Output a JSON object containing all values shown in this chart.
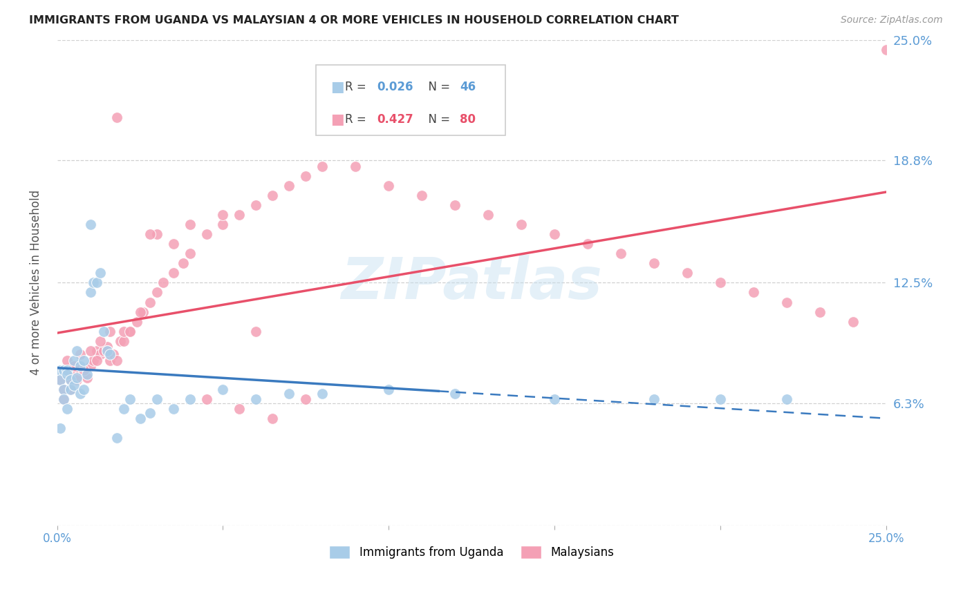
{
  "title": "IMMIGRANTS FROM UGANDA VS MALAYSIAN 4 OR MORE VEHICLES IN HOUSEHOLD CORRELATION CHART",
  "source": "Source: ZipAtlas.com",
  "ylabel": "4 or more Vehicles in Household",
  "xlim": [
    0.0,
    0.25
  ],
  "ylim": [
    0.0,
    0.25
  ],
  "watermark": "ZIPatlas",
  "uganda": {
    "name": "Immigrants from Uganda",
    "R": 0.026,
    "N": 46,
    "dot_color": "#a8cce8",
    "trend_color": "#3a7abf",
    "trend_start_solid": 0.0,
    "trend_end_solid": 0.115,
    "trend_start_dash": 0.115,
    "trend_end_dash": 0.25,
    "x": [
      0.001,
      0.001,
      0.001,
      0.002,
      0.002,
      0.002,
      0.003,
      0.003,
      0.003,
      0.004,
      0.004,
      0.005,
      0.005,
      0.006,
      0.006,
      0.007,
      0.007,
      0.008,
      0.008,
      0.009,
      0.01,
      0.011,
      0.012,
      0.013,
      0.014,
      0.015,
      0.016,
      0.018,
      0.02,
      0.022,
      0.025,
      0.028,
      0.03,
      0.035,
      0.04,
      0.05,
      0.06,
      0.07,
      0.08,
      0.1,
      0.12,
      0.15,
      0.18,
      0.2,
      0.22,
      0.01
    ],
    "y": [
      0.08,
      0.075,
      0.05,
      0.07,
      0.08,
      0.065,
      0.08,
      0.078,
      0.06,
      0.075,
      0.07,
      0.085,
      0.072,
      0.09,
      0.076,
      0.082,
      0.068,
      0.085,
      0.07,
      0.078,
      0.12,
      0.125,
      0.125,
      0.13,
      0.1,
      0.09,
      0.088,
      0.045,
      0.06,
      0.065,
      0.055,
      0.058,
      0.065,
      0.06,
      0.065,
      0.07,
      0.065,
      0.068,
      0.068,
      0.07,
      0.068,
      0.065,
      0.065,
      0.065,
      0.065,
      0.155
    ]
  },
  "malay": {
    "name": "Malaysians",
    "R": 0.427,
    "N": 80,
    "dot_color": "#f4a0b5",
    "trend_color": "#e8506a",
    "x": [
      0.001,
      0.002,
      0.003,
      0.004,
      0.005,
      0.006,
      0.007,
      0.008,
      0.009,
      0.01,
      0.011,
      0.012,
      0.013,
      0.014,
      0.015,
      0.016,
      0.017,
      0.018,
      0.019,
      0.02,
      0.022,
      0.024,
      0.026,
      0.028,
      0.03,
      0.032,
      0.035,
      0.038,
      0.04,
      0.045,
      0.05,
      0.055,
      0.06,
      0.065,
      0.07,
      0.075,
      0.08,
      0.09,
      0.1,
      0.11,
      0.12,
      0.13,
      0.14,
      0.15,
      0.16,
      0.17,
      0.18,
      0.19,
      0.2,
      0.21,
      0.22,
      0.23,
      0.24,
      0.25,
      0.003,
      0.005,
      0.007,
      0.01,
      0.013,
      0.016,
      0.02,
      0.025,
      0.03,
      0.04,
      0.05,
      0.06,
      0.002,
      0.004,
      0.006,
      0.008,
      0.012,
      0.015,
      0.018,
      0.022,
      0.028,
      0.035,
      0.045,
      0.055,
      0.065,
      0.075
    ],
    "y": [
      0.075,
      0.07,
      0.08,
      0.075,
      0.082,
      0.078,
      0.08,
      0.078,
      0.076,
      0.082,
      0.085,
      0.09,
      0.088,
      0.09,
      0.092,
      0.085,
      0.088,
      0.21,
      0.095,
      0.095,
      0.1,
      0.105,
      0.11,
      0.115,
      0.12,
      0.125,
      0.13,
      0.135,
      0.14,
      0.15,
      0.155,
      0.16,
      0.165,
      0.17,
      0.175,
      0.18,
      0.185,
      0.185,
      0.175,
      0.17,
      0.165,
      0.16,
      0.155,
      0.15,
      0.145,
      0.14,
      0.135,
      0.13,
      0.125,
      0.12,
      0.115,
      0.11,
      0.105,
      0.245,
      0.085,
      0.082,
      0.088,
      0.09,
      0.095,
      0.1,
      0.1,
      0.11,
      0.15,
      0.155,
      0.16,
      0.1,
      0.065,
      0.07,
      0.075,
      0.08,
      0.085,
      0.09,
      0.085,
      0.1,
      0.15,
      0.145,
      0.065,
      0.06,
      0.055,
      0.065
    ]
  },
  "background_color": "#ffffff",
  "grid_color": "#d0d0d0",
  "title_color": "#222222",
  "axis_label_color": "#555555",
  "tick_label_color": "#5b9bd5",
  "ytick_vals": [
    0.0,
    0.063,
    0.125,
    0.188,
    0.25
  ],
  "ytick_labels": [
    "",
    "6.3%",
    "12.5%",
    "18.8%",
    "25.0%"
  ],
  "xtick_vals": [
    0.0,
    0.05,
    0.1,
    0.15,
    0.2,
    0.25
  ],
  "xtick_labels": [
    "0.0%",
    "",
    "",
    "",
    "",
    "25.0%"
  ]
}
